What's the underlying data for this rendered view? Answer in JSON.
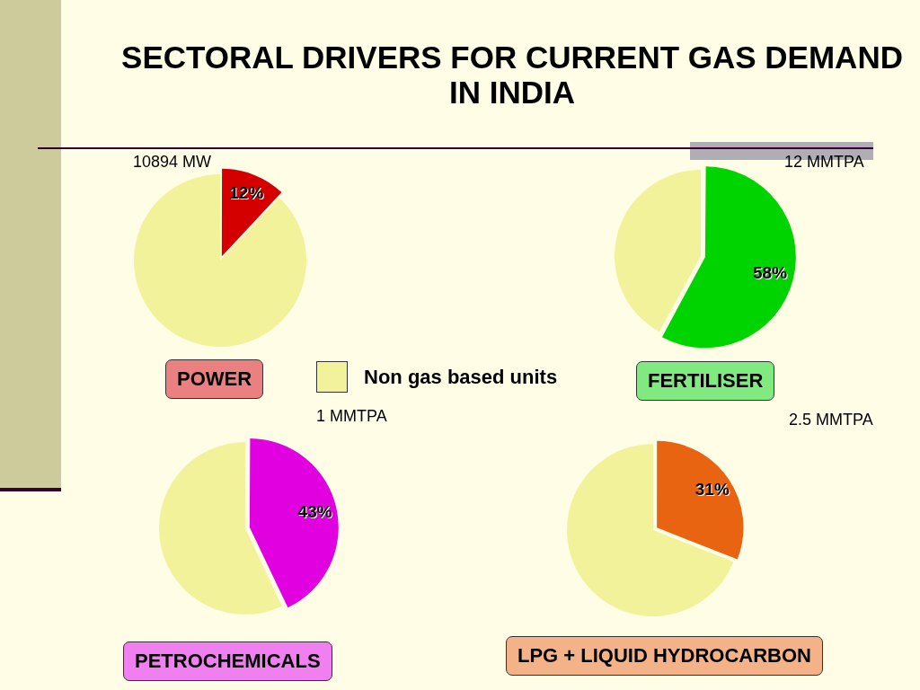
{
  "chart_data": [
    {
      "type": "other",
      "title": "SECTORAL DRIVERS FOR CURRENT GAS DEMAND IN INDIA"
    },
    {
      "type": "pie",
      "title": "POWER",
      "annotations": [
        "10894 MW"
      ],
      "categories": [
        null,
        "Non gas based units"
      ],
      "values": [
        12,
        88
      ],
      "colors": [
        "#d40000",
        "#f2f29a"
      ],
      "value_labels": [
        "12%",
        null
      ],
      "legend": "bottom right"
    },
    {
      "type": "pie",
      "title": "FERTILISER",
      "annotations": [
        "12 MMTPA"
      ],
      "categories": [
        null,
        null
      ],
      "values": [
        58,
        42
      ],
      "colors": [
        "#00d400",
        "#f2f29a"
      ],
      "value_labels": [
        "58%",
        null
      ]
    },
    {
      "type": "pie",
      "title": "PETROCHEMICALS",
      "annotations": [
        "1 MMTPA"
      ],
      "categories": [
        null,
        null
      ],
      "values": [
        43,
        57
      ],
      "colors": [
        "#e000e0",
        "#f2f29a"
      ],
      "value_labels": [
        "43%",
        null
      ]
    },
    {
      "type": "pie",
      "title": "LPG + LIQUID HYDROCARBON",
      "annotations": [
        "2.5 MMTPA"
      ],
      "categories": [
        null,
        null
      ],
      "values": [
        31,
        69
      ],
      "colors": [
        "#e86410",
        "#f2f29a"
      ],
      "value_labels": [
        "31%",
        null
      ]
    }
  ]
}
